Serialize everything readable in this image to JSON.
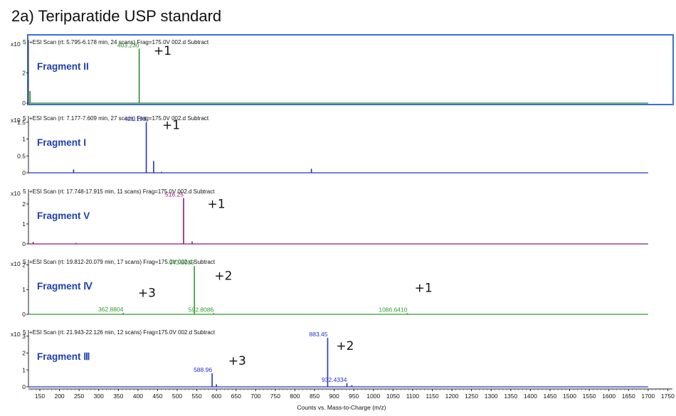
{
  "title": "2a) Teriparatide USP standard",
  "x_axis_label": "Counts vs. Mass-to-Charge (m/z)",
  "multiplier_label": "x10",
  "multiplier_exponent": "5",
  "chart_data": {
    "type": "line",
    "x_range": [
      120,
      1760
    ],
    "x_ticks": [
      150,
      200,
      250,
      300,
      350,
      400,
      450,
      500,
      550,
      600,
      650,
      700,
      750,
      800,
      850,
      900,
      950,
      1000,
      1050,
      1100,
      1150,
      1200,
      1250,
      1300,
      1350,
      1400,
      1450,
      1500,
      1550,
      1600,
      1650,
      1700,
      1750
    ],
    "panels": [
      {
        "header": "+ESI Scan (rt: 5.795-6.178 min, 24 scans) Frag=175.0V 002.d  Subtract",
        "fragment": "Fragment II",
        "color": "#2e8b2e",
        "ylim": [
          0,
          4
        ],
        "yticks": [
          "0",
          "2"
        ],
        "yvals": [
          0,
          2
        ],
        "x_end": 1700,
        "highlighted": true,
        "peaks": [
          {
            "x": 403.2,
            "y": 3.6,
            "label": "403.230"
          },
          {
            "x": 125,
            "y": 0.8
          }
        ],
        "charges": [
          {
            "text": "+1",
            "x": 440,
            "y": 3.2
          }
        ]
      },
      {
        "header": "+ESI Scan (rt: 7.177-7.609 min, 27 scans) Frag=175.0V 002.d  Subtract",
        "fragment": "Fragment I",
        "color": "#2233cc",
        "ylim": [
          0,
          1.6
        ],
        "yticks": [
          "0",
          "0.5",
          "1",
          "1.5"
        ],
        "yvals": [
          0,
          0.5,
          1,
          1.5
        ],
        "x_end": 1700,
        "peaks": [
          {
            "x": 421.193,
            "y": 1.5,
            "label": "421.193"
          },
          {
            "x": 440,
            "y": 0.35
          },
          {
            "x": 236,
            "y": 0.1
          },
          {
            "x": 842,
            "y": 0.12
          },
          {
            "x": 460,
            "y": 0.03
          }
        ],
        "charges": [
          {
            "text": "+1",
            "x": 462,
            "y": 1.3
          }
        ]
      },
      {
        "header": "+ESI Scan (rt: 17.748-17.915 min, 11 scans) Frag=175.0V 002.d  Subtract",
        "fragment": "Fragment V",
        "color": "#8b1a7a",
        "ylim": [
          0,
          2.6
        ],
        "yticks": [
          "0",
          "1",
          "2"
        ],
        "yvals": [
          0,
          1,
          2
        ],
        "x_end": 1700,
        "peaks": [
          {
            "x": 516.25,
            "y": 2.3,
            "label": "516.25"
          },
          {
            "x": 538,
            "y": 0.12
          },
          {
            "x": 133,
            "y": 0.1
          },
          {
            "x": 242,
            "y": 0.05
          }
        ],
        "charges": [
          {
            "text": "+1",
            "x": 577,
            "y": 1.8
          }
        ]
      },
      {
        "header": "+ESI Scan (rt: 19.812-20.079 min, 17 scans) Frag=175.0V 002.d  Subtract",
        "fragment": "Fragment Ⅳ",
        "color": "#2e9e2e",
        "ylim": [
          0,
          2.1
        ],
        "yticks": [
          "0",
          "1",
          "2"
        ],
        "yvals": [
          0,
          1,
          2
        ],
        "x_end": 1700,
        "peaks": [
          {
            "x": 543.8,
            "y": 1.95,
            "label": "543.8059"
          },
          {
            "x": 362.88,
            "y": 0.06,
            "label": "362.8804"
          },
          {
            "x": 592.8086,
            "y": 0.05,
            "label": "592.8086"
          },
          {
            "x": 1086.641,
            "y": 0.05,
            "label": "1086.6410"
          }
        ],
        "charges": [
          {
            "text": "+3",
            "x": 400,
            "y": 0.7
          },
          {
            "text": "+2",
            "x": 595,
            "y": 1.4
          },
          {
            "text": "+1",
            "x": 1105,
            "y": 0.9
          }
        ]
      },
      {
        "header": "+ESI Scan (rt: 21.943-22.126 min, 12 scans) Frag=175.0V 002.d  Subtract",
        "fragment": "Fragment Ⅲ",
        "color": "#2233cc",
        "ylim": [
          0,
          3.2
        ],
        "yticks": [
          "0",
          "1",
          "2",
          "3"
        ],
        "yvals": [
          0,
          1,
          2,
          3
        ],
        "x_end": 1700,
        "peaks": [
          {
            "x": 883.45,
            "y": 2.9,
            "label": "883.45"
          },
          {
            "x": 588.96,
            "y": 0.8,
            "label": "588.96"
          },
          {
            "x": 932.4334,
            "y": 0.22,
            "label": "932.4334"
          },
          {
            "x": 600,
            "y": 0.15
          },
          {
            "x": 945,
            "y": 0.1
          }
        ],
        "charges": [
          {
            "text": "+2",
            "x": 905,
            "y": 2.2
          },
          {
            "text": "+3",
            "x": 630,
            "y": 1.3
          }
        ]
      }
    ]
  }
}
